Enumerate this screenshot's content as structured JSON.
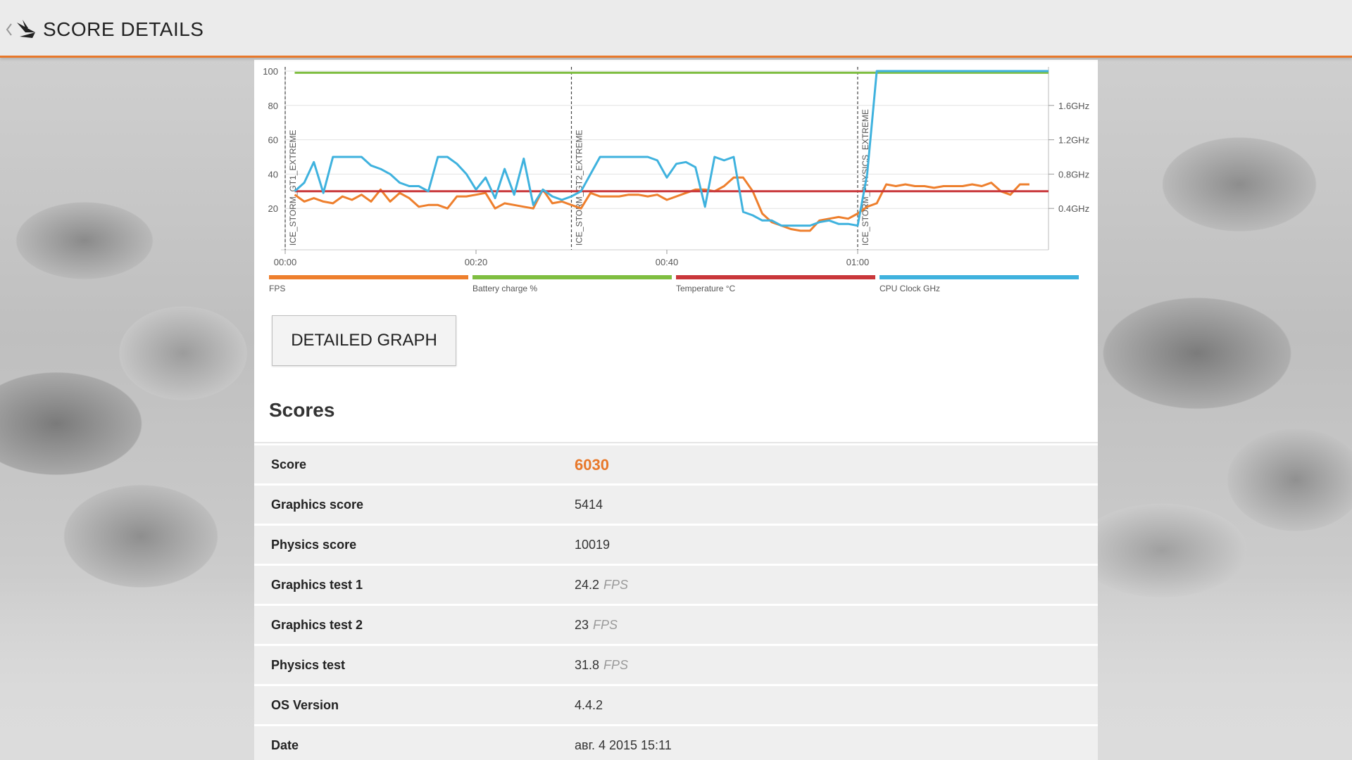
{
  "header": {
    "title": "SCORE DETAILS",
    "back_icon": "back-chevron-icon",
    "logo_icon": "3dmark-logo-icon"
  },
  "colors": {
    "accent": "#e8782a",
    "fps": "#ee7f2d",
    "battery": "#7fbe41",
    "temperature": "#c9373a",
    "cpu_clock": "#3fb2de"
  },
  "chart_data": {
    "type": "line",
    "x_ticks": [
      "00:00",
      "00:20",
      "00:40",
      "01:00"
    ],
    "y_left_ticks": [
      "100",
      "80",
      "60",
      "40",
      "20"
    ],
    "y_left_range": [
      0,
      100
    ],
    "y_right_ticks": [
      "1.6GHz",
      "1.2GHz",
      "0.8GHz",
      "0.4GHz"
    ],
    "x_range_seconds": [
      0,
      80
    ],
    "segments": [
      {
        "label": "ICE_STORM_GT1_EXTREME",
        "start": 0
      },
      {
        "label": "ICE_STORM_GT2_EXTREME",
        "start": 30
      },
      {
        "label": "ICE_STORM_PHYSICS_EXTREME",
        "start": 60
      }
    ],
    "series": [
      {
        "name": "FPS",
        "color": "#ee7f2d",
        "points": [
          [
            1,
            28
          ],
          [
            2,
            24
          ],
          [
            3,
            26
          ],
          [
            4,
            24
          ],
          [
            5,
            23
          ],
          [
            6,
            27
          ],
          [
            7,
            25
          ],
          [
            8,
            28
          ],
          [
            9,
            24
          ],
          [
            10,
            31
          ],
          [
            11,
            24
          ],
          [
            12,
            29
          ],
          [
            13,
            26
          ],
          [
            14,
            21
          ],
          [
            15,
            22
          ],
          [
            16,
            22
          ],
          [
            17,
            20
          ],
          [
            18,
            27
          ],
          [
            19,
            27
          ],
          [
            20,
            28
          ],
          [
            21,
            29
          ],
          [
            22,
            20
          ],
          [
            23,
            23
          ],
          [
            24,
            22
          ],
          [
            25,
            21
          ],
          [
            26,
            20
          ],
          [
            27,
            31
          ],
          [
            28,
            23
          ],
          [
            29,
            24
          ],
          [
            30,
            22
          ],
          [
            31,
            20
          ],
          [
            32,
            29
          ],
          [
            33,
            27
          ],
          [
            34,
            27
          ],
          [
            35,
            27
          ],
          [
            36,
            28
          ],
          [
            37,
            28
          ],
          [
            38,
            27
          ],
          [
            39,
            28
          ],
          [
            40,
            25
          ],
          [
            41,
            27
          ],
          [
            42,
            29
          ],
          [
            43,
            31
          ],
          [
            44,
            31
          ],
          [
            45,
            30
          ],
          [
            46,
            33
          ],
          [
            47,
            38
          ],
          [
            48,
            38
          ],
          [
            49,
            30
          ],
          [
            50,
            17
          ],
          [
            51,
            12
          ],
          [
            52,
            10
          ],
          [
            53,
            8
          ],
          [
            54,
            7
          ],
          [
            55,
            7
          ],
          [
            56,
            13
          ],
          [
            57,
            14
          ],
          [
            58,
            15
          ],
          [
            59,
            14
          ],
          [
            60,
            17
          ],
          [
            61,
            21
          ],
          [
            62,
            23
          ],
          [
            63,
            34
          ],
          [
            64,
            33
          ],
          [
            65,
            34
          ],
          [
            66,
            33
          ],
          [
            67,
            33
          ],
          [
            68,
            32
          ],
          [
            69,
            33
          ],
          [
            70,
            33
          ],
          [
            71,
            33
          ],
          [
            72,
            34
          ],
          [
            73,
            33
          ],
          [
            74,
            35
          ],
          [
            75,
            30
          ],
          [
            76,
            28
          ],
          [
            77,
            34
          ],
          [
            78,
            34
          ]
        ]
      },
      {
        "name": "Battery charge %",
        "color": "#7fbe41",
        "points": [
          [
            1,
            99
          ],
          [
            60,
            99
          ],
          [
            61,
            99
          ],
          [
            80,
            99
          ]
        ]
      },
      {
        "name": "Temperature °C",
        "color": "#c9373a",
        "points": [
          [
            1,
            30
          ],
          [
            80,
            30
          ]
        ]
      },
      {
        "name": "CPU Clock GHz",
        "color": "#3fb2de",
        "points": [
          [
            1,
            30
          ],
          [
            2,
            35
          ],
          [
            3,
            47
          ],
          [
            4,
            29
          ],
          [
            5,
            50
          ],
          [
            6,
            50
          ],
          [
            7,
            50
          ],
          [
            8,
            50
          ],
          [
            9,
            45
          ],
          [
            10,
            43
          ],
          [
            11,
            40
          ],
          [
            12,
            35
          ],
          [
            13,
            33
          ],
          [
            14,
            33
          ],
          [
            15,
            30
          ],
          [
            16,
            50
          ],
          [
            17,
            50
          ],
          [
            18,
            46
          ],
          [
            19,
            40
          ],
          [
            20,
            31
          ],
          [
            21,
            38
          ],
          [
            22,
            26
          ],
          [
            23,
            43
          ],
          [
            24,
            28
          ],
          [
            25,
            49
          ],
          [
            26,
            22
          ],
          [
            27,
            31
          ],
          [
            28,
            27
          ],
          [
            29,
            25
          ],
          [
            30,
            27
          ],
          [
            31,
            30
          ],
          [
            32,
            40
          ],
          [
            33,
            50
          ],
          [
            34,
            50
          ],
          [
            35,
            50
          ],
          [
            36,
            50
          ],
          [
            37,
            50
          ],
          [
            38,
            50
          ],
          [
            39,
            48
          ],
          [
            40,
            38
          ],
          [
            41,
            46
          ],
          [
            42,
            47
          ],
          [
            43,
            44
          ],
          [
            44,
            21
          ],
          [
            45,
            50
          ],
          [
            46,
            48
          ],
          [
            47,
            50
          ],
          [
            48,
            18
          ],
          [
            49,
            16
          ],
          [
            50,
            13
          ],
          [
            51,
            13
          ],
          [
            52,
            10
          ],
          [
            53,
            10
          ],
          [
            54,
            10
          ],
          [
            55,
            10
          ],
          [
            56,
            12
          ],
          [
            57,
            13
          ],
          [
            58,
            11
          ],
          [
            59,
            11
          ],
          [
            60,
            10
          ],
          [
            61,
            40
          ],
          [
            62,
            100
          ],
          [
            70,
            100
          ],
          [
            80,
            100
          ]
        ]
      }
    ]
  },
  "legend": [
    {
      "label": "FPS",
      "color": "#ee7f2d"
    },
    {
      "label": "Battery charge %",
      "color": "#7fbe41"
    },
    {
      "label": "Temperature °C",
      "color": "#c9373a"
    },
    {
      "label": "CPU Clock GHz",
      "color": "#3fb2de"
    }
  ],
  "detailed_graph_label": "DETAILED GRAPH",
  "scores": {
    "title": "Scores",
    "rows": [
      {
        "key": "Score",
        "value": "6030",
        "unit": ""
      },
      {
        "key": "Graphics score",
        "value": "5414",
        "unit": ""
      },
      {
        "key": "Physics score",
        "value": "10019",
        "unit": ""
      },
      {
        "key": "Graphics test 1",
        "value": "24.2",
        "unit": "FPS"
      },
      {
        "key": "Graphics test 2",
        "value": "23",
        "unit": "FPS"
      },
      {
        "key": "Physics test",
        "value": "31.8",
        "unit": "FPS"
      },
      {
        "key": "OS Version",
        "value": "4.4.2",
        "unit": ""
      },
      {
        "key": "Date",
        "value": "авг. 4 2015 15:11",
        "unit": ""
      }
    ]
  }
}
